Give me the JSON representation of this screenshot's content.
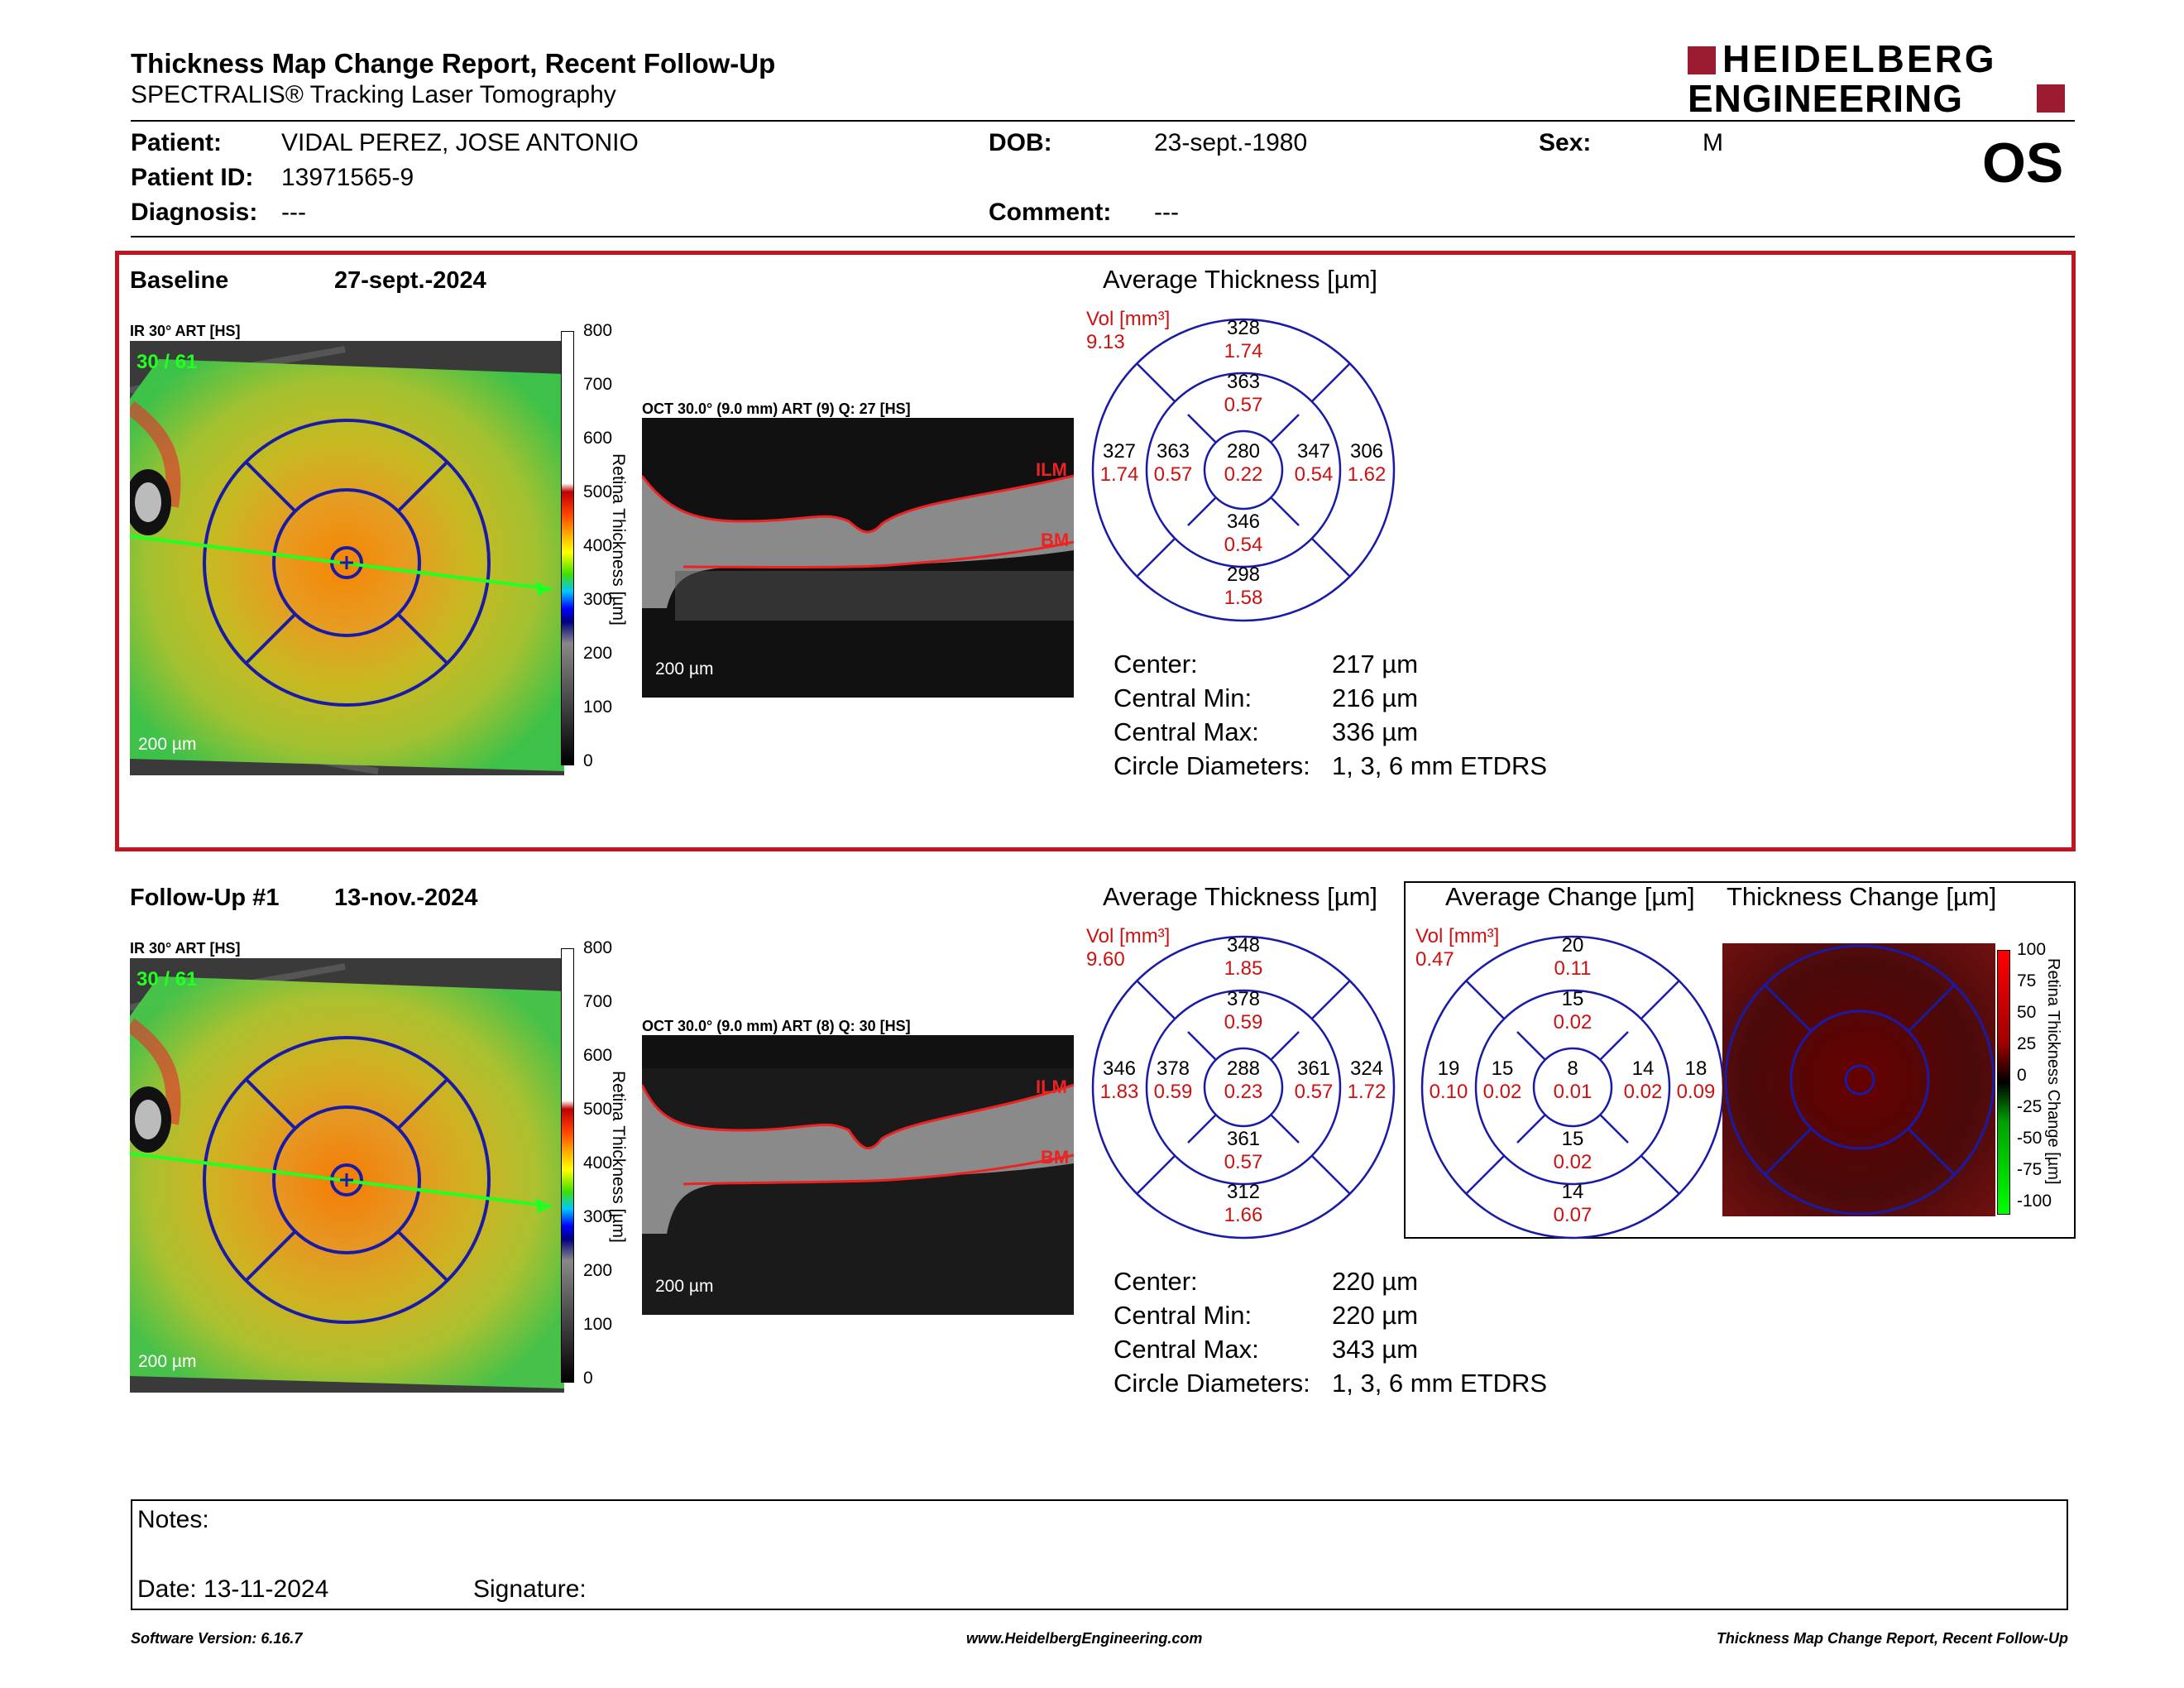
{
  "header": {
    "title": "Thickness Map Change Report, Recent Follow-Up",
    "subtitle": "SPECTRALIS® Tracking Laser Tomography",
    "logo_line1": "HEIDELBERG",
    "logo_line2": "ENGINEERING",
    "eye": "OS"
  },
  "patient": {
    "patient_label": "Patient:",
    "patient_value": "VIDAL PEREZ, JOSE ANTONIO",
    "id_label": "Patient ID:",
    "id_value": "13971565-9",
    "diagnosis_label": "Diagnosis:",
    "diagnosis_value": "---",
    "dob_label": "DOB:",
    "dob_value": "23-sept.-1980",
    "comment_label": "Comment:",
    "comment_value": "---",
    "sex_label": "Sex:",
    "sex_value": "M"
  },
  "baseline": {
    "label": "Baseline",
    "date": "27-sept.-2024",
    "ir_label": "IR 30° ART [HS]",
    "ir_counter": "30 / 61",
    "oct_label": "OCT 30.0° (9.0 mm) ART (9) Q: 27 [HS]",
    "scale_label": "200 µm",
    "ilm": "ILM",
    "bm": "BM",
    "avg_title": "Average Thickness [µm]",
    "vol_label": "Vol [mm³]",
    "vol_value": "9.13",
    "grid": {
      "outer_sup": [
        "328",
        "1.74"
      ],
      "inner_sup": [
        "363",
        "0.57"
      ],
      "outer_temp": [
        "327",
        "1.74"
      ],
      "inner_temp": [
        "363",
        "0.57"
      ],
      "center": [
        "280",
        "0.22"
      ],
      "inner_nas": [
        "347",
        "0.54"
      ],
      "outer_nas": [
        "306",
        "1.62"
      ],
      "inner_inf": [
        "346",
        "0.54"
      ],
      "outer_inf": [
        "298",
        "1.58"
      ]
    },
    "stats": {
      "center_label": "Center:",
      "center_value": "217 µm",
      "min_label": "Central Min:",
      "min_value": "216 µm",
      "max_label": "Central Max:",
      "max_value": "336 µm",
      "diam_label": "Circle Diameters:",
      "diam_value": "1, 3, 6 mm ETDRS"
    }
  },
  "followup": {
    "label": "Follow-Up #1",
    "date": "13-nov.-2024",
    "ir_label": "IR 30° ART [HS]",
    "ir_counter": "30 / 61",
    "oct_label": "OCT 30.0° (9.0 mm) ART (8) Q: 30 [HS]",
    "scale_label": "200 µm",
    "ilm": "ILM",
    "bm": "BM",
    "avg_title": "Average Thickness [µm]",
    "vol_label": "Vol [mm³]",
    "vol_value": "9.60",
    "grid": {
      "outer_sup": [
        "348",
        "1.85"
      ],
      "inner_sup": [
        "378",
        "0.59"
      ],
      "outer_temp": [
        "346",
        "1.83"
      ],
      "inner_temp": [
        "378",
        "0.59"
      ],
      "center": [
        "288",
        "0.23"
      ],
      "inner_nas": [
        "361",
        "0.57"
      ],
      "outer_nas": [
        "324",
        "1.72"
      ],
      "inner_inf": [
        "361",
        "0.57"
      ],
      "outer_inf": [
        "312",
        "1.66"
      ]
    },
    "stats": {
      "center_label": "Center:",
      "center_value": "220 µm",
      "min_label": "Central Min:",
      "min_value": "220 µm",
      "max_label": "Central Max:",
      "max_value": "343 µm",
      "diam_label": "Circle Diameters:",
      "diam_value": "1, 3, 6 mm ETDRS"
    }
  },
  "change": {
    "avg_title": "Average Change [µm]",
    "map_title": "Thickness Change [µm]",
    "vol_label": "Vol [mm³]",
    "vol_value": "0.47",
    "grid": {
      "outer_sup": [
        "20",
        "0.11"
      ],
      "inner_sup": [
        "15",
        "0.02"
      ],
      "outer_temp": [
        "19",
        "0.10"
      ],
      "inner_temp": [
        "15",
        "0.02"
      ],
      "center": [
        "8",
        "0.01"
      ],
      "inner_nas": [
        "14",
        "0.02"
      ],
      "outer_nas": [
        "18",
        "0.09"
      ],
      "inner_inf": [
        "15",
        "0.02"
      ],
      "outer_inf": [
        "14",
        "0.07"
      ]
    },
    "scale_ticks": [
      "100",
      "75",
      "50",
      "25",
      "0",
      "-25",
      "-50",
      "-75",
      "-100"
    ],
    "scale_title": "Retina Thickness Change [µm]"
  },
  "thickness_scale": {
    "ticks": [
      "800",
      "700",
      "600",
      "500",
      "400",
      "300",
      "200",
      "100",
      "0"
    ],
    "title": "Retina Thickness [µm]"
  },
  "notes": {
    "label": "Notes:",
    "date_label": "Date: 13-11-2024",
    "signature_label": "Signature:"
  },
  "footer": {
    "version": "Software Version: 6.16.7",
    "url": "www.HeidelbergEngineering.com",
    "report": "Thickness Map Change Report, Recent Follow-Up"
  },
  "colors": {
    "brand_red": "#9b1b30",
    "box_red": "#c0141e",
    "grid_blue": "#1a1aa8",
    "value_red": "#cc1111"
  }
}
